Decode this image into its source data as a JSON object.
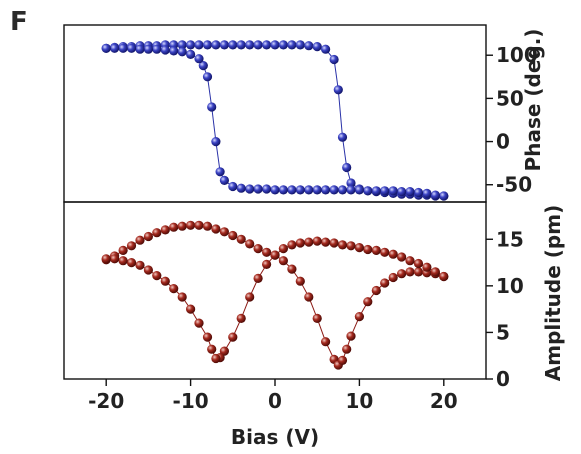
{
  "panel_label": "F",
  "chart_data": [
    {
      "type": "line",
      "panel": "phase",
      "xlabel": "",
      "ylabel": "Phase (deg.)",
      "xlim": [
        -25,
        25
      ],
      "ylim": [
        -70,
        135
      ],
      "yticks": [
        100,
        50,
        0,
        -50
      ],
      "ytick_labels": [
        "100",
        "50",
        "0",
        "-50"
      ],
      "y_axis_side": "right",
      "marker": "sphere",
      "color": "#2a32a8",
      "series": [
        {
          "segment": "forward sweep",
          "x": [
            -20,
            -19,
            -18,
            -17,
            -16,
            -15,
            -14,
            -13,
            -12,
            -11,
            -10,
            -9,
            -8,
            -7,
            -6,
            -5,
            -4,
            -3,
            -2,
            -1,
            0,
            1,
            2,
            3,
            4,
            5,
            6,
            7,
            7.5,
            8,
            8.5,
            9,
            10,
            11,
            12,
            13,
            14,
            15,
            16,
            17,
            18,
            19,
            20
          ],
          "y": [
            108,
            109,
            110,
            110,
            111,
            111,
            111,
            112,
            112,
            112,
            112,
            112,
            112,
            112,
            112,
            112,
            112,
            112,
            112,
            112,
            112,
            112,
            112,
            112,
            111,
            110,
            107,
            95,
            60,
            5,
            -30,
            -48,
            -55,
            -57,
            -58,
            -59,
            -60,
            -61,
            -61,
            -62,
            -62,
            -63,
            -63
          ]
        },
        {
          "segment": "reverse sweep",
          "x": [
            20,
            19,
            18,
            17,
            16,
            15,
            14,
            13,
            12,
            11,
            10,
            9,
            8,
            7,
            6,
            5,
            4,
            3,
            2,
            1,
            0,
            -1,
            -2,
            -3,
            -4,
            -5,
            -6,
            -6.5,
            -7,
            -7.5,
            -8,
            -8.5,
            -9,
            -10,
            -11,
            -12,
            -13,
            -14,
            -15,
            -16,
            -17,
            -18,
            -19,
            -20
          ],
          "y": [
            -63,
            -62,
            -60,
            -59,
            -58,
            -58,
            -57,
            -57,
            -57,
            -57,
            -56,
            -56,
            -56,
            -56,
            -56,
            -56,
            -56,
            -56,
            -56,
            -56,
            -56,
            -55,
            -55,
            -55,
            -54,
            -52,
            -45,
            -35,
            0,
            40,
            75,
            88,
            96,
            101,
            104,
            105,
            106,
            107,
            107,
            107,
            108,
            108,
            108,
            108
          ]
        }
      ]
    },
    {
      "type": "line",
      "panel": "amplitude",
      "xlabel": "Bias (V)",
      "ylabel": "Amplitude (pm)",
      "xlim": [
        -25,
        25
      ],
      "ylim": [
        0,
        19
      ],
      "yticks": [
        15,
        10,
        5,
        0
      ],
      "ytick_labels": [
        "15",
        "10",
        "5",
        "0"
      ],
      "xticks": [
        -20,
        -10,
        0,
        10,
        20
      ],
      "xtick_labels": [
        "-20",
        "-10",
        "0",
        "10",
        "20"
      ],
      "y_axis_side": "right",
      "marker": "sphere",
      "color": "#8c1a14",
      "series": [
        {
          "segment": "forward sweep",
          "x": [
            -20,
            -19,
            -18,
            -17,
            -16,
            -15,
            -14,
            -13,
            -12,
            -11,
            -10,
            -9,
            -8,
            -7,
            -6,
            -5,
            -4,
            -3,
            -2,
            -1,
            0,
            1,
            2,
            3,
            4,
            5,
            6,
            7,
            7.5,
            8,
            8.5,
            9,
            10,
            11,
            12,
            13,
            14,
            15,
            16,
            17,
            18,
            19,
            20
          ],
          "y": [
            12.8,
            13.2,
            13.8,
            14.3,
            14.9,
            15.3,
            15.7,
            16.0,
            16.3,
            16.4,
            16.5,
            16.5,
            16.4,
            16.1,
            15.8,
            15.4,
            15.0,
            14.5,
            14.0,
            13.6,
            13.3,
            12.7,
            11.8,
            10.5,
            8.8,
            6.5,
            4.0,
            2.1,
            1.5,
            2.0,
            3.2,
            4.6,
            6.7,
            8.3,
            9.5,
            10.3,
            10.9,
            11.3,
            11.5,
            11.5,
            11.4,
            11.3,
            11.0
          ]
        },
        {
          "segment": "reverse sweep",
          "x": [
            20,
            19,
            18,
            17,
            16,
            15,
            14,
            13,
            12,
            11,
            10,
            9,
            8,
            7,
            6,
            5,
            4,
            3,
            2,
            1,
            0,
            -1,
            -2,
            -3,
            -4,
            -5,
            -6,
            -6.5,
            -7,
            -7.5,
            -8,
            -9,
            -10,
            -11,
            -12,
            -13,
            -14,
            -15,
            -16,
            -17,
            -18,
            -19,
            -20
          ],
          "y": [
            11.0,
            11.5,
            12.0,
            12.4,
            12.7,
            13.1,
            13.4,
            13.6,
            13.8,
            13.9,
            14.1,
            14.3,
            14.4,
            14.6,
            14.7,
            14.8,
            14.7,
            14.6,
            14.4,
            14.0,
            13.3,
            12.3,
            10.8,
            8.8,
            6.5,
            4.5,
            3.0,
            2.3,
            2.2,
            3.2,
            4.5,
            6.0,
            7.5,
            8.8,
            9.7,
            10.5,
            11.1,
            11.7,
            12.2,
            12.5,
            12.7,
            12.9,
            12.9
          ]
        }
      ]
    }
  ]
}
